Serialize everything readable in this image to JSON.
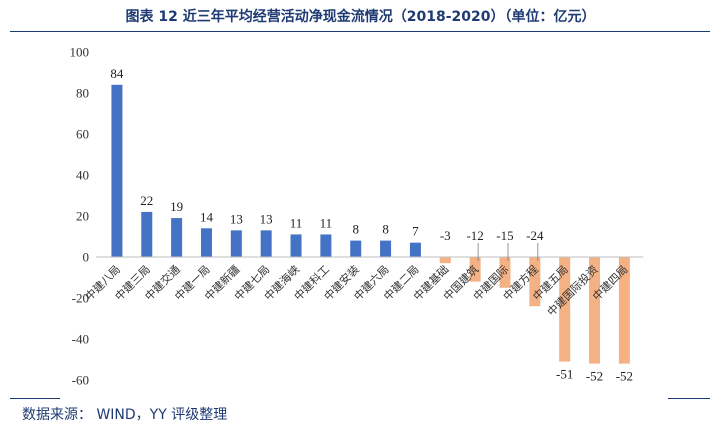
{
  "title": "图表 12 近三年平均经营活动净现金流情况（2018-2020）（单位：亿元）",
  "source": "数据来源： WIND，YY 评级整理",
  "colors": {
    "positive": "#4472C4",
    "negative": "#F4B183",
    "title": "#1f3a73"
  },
  "chart_data": {
    "type": "bar",
    "title": "图表 12 近三年平均经营活动净现金流情况（2018-2020）（单位：亿元）",
    "xlabel": "",
    "ylabel": "",
    "ylim": [
      -60,
      100
    ],
    "yticks": [
      -60,
      -40,
      -20,
      0,
      20,
      40,
      60,
      80,
      100
    ],
    "grid": false,
    "categories": [
      "中建八局",
      "中建三局",
      "中建交通",
      "中建一局",
      "中建新疆",
      "中建七局",
      "中建海峡",
      "中建科工",
      "中建安装",
      "中建六局",
      "中建二局",
      "中建基础",
      "中国建筑",
      "中建国际",
      "中建方程",
      "中建五局",
      "中建国际投资",
      "中建四局"
    ],
    "values": [
      84,
      22,
      19,
      14,
      13,
      13,
      11,
      11,
      8,
      8,
      7,
      -3,
      -12,
      -15,
      -24,
      -51,
      -52,
      -52
    ],
    "data_labels": [
      "84",
      "22",
      "19",
      "14",
      "13",
      "13",
      "11",
      "11",
      "8",
      "8",
      "7",
      "-3",
      "-12",
      "-15",
      "-24",
      "-51",
      "-52",
      "-52"
    ]
  }
}
